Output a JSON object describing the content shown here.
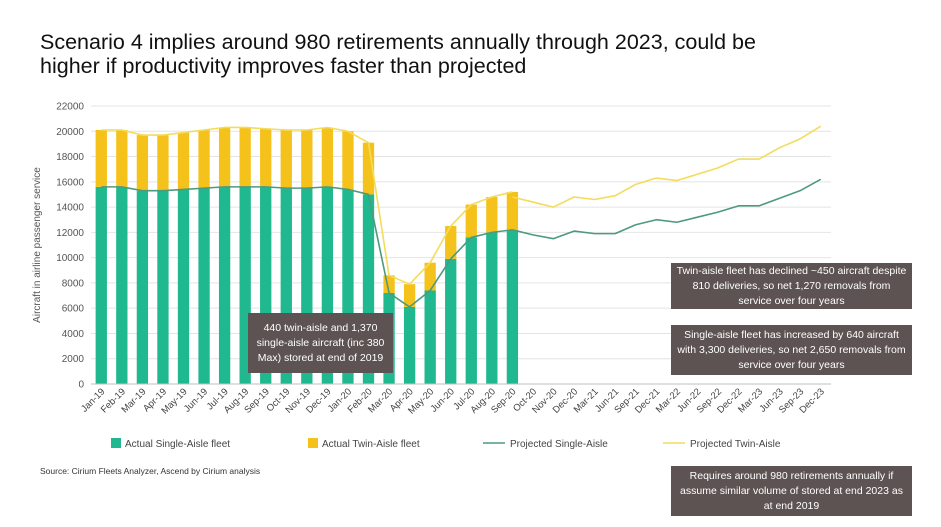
{
  "title_lines": [
    "Scenario 4 implies around 980 retirements annually through 2023, could be",
    "higher if productivity improves faster than projected"
  ],
  "source": "Source: Cirium Fleets Analyzer, Ascend by Cirium analysis",
  "notes": {
    "stored": "440 twin-aisle and 1,370 single-aisle aircraft (inc 380 Max) stored at end of 2019",
    "twin_aisle": "Twin-aisle fleet has declined ~450 aircraft despite 810 deliveries, so net 1,270 removals from service over four years",
    "single_aisle": "Single-aisle fleet has increased by 640 aircraft with 3,300 deliveries, so net 2,650 removals from service over four years",
    "retirements": "Requires around 980 retirements annually if assume similar volume of stored at end 2023 as at end 2019"
  },
  "colors": {
    "single_aisle": "#1fb88f",
    "twin_aisle": "#f5c21b",
    "projected_single": "#4e9a7d",
    "projected_twin": "#f3dc5c"
  },
  "chart_data": {
    "type": "bar",
    "ylabel": "Aircraft in airline passenger service",
    "ylim": [
      0,
      22000
    ],
    "yticks": [
      0,
      2000,
      4000,
      6000,
      8000,
      10000,
      12000,
      14000,
      16000,
      18000,
      20000,
      22000
    ],
    "actual_categories": [
      "Jan-19",
      "Feb-19",
      "Mar-19",
      "Apr-19",
      "May-19",
      "Jun-19",
      "Jul-19",
      "Aug-19",
      "Sep-19",
      "Oct-19",
      "Nov-19",
      "Dec-19",
      "Jan-20",
      "Feb-20",
      "Mar-20",
      "Apr-20",
      "May-20",
      "Jun-20",
      "Jul-20",
      "Aug-20",
      "Sep-20"
    ],
    "x_tick_labels": [
      "Jan-19",
      "Feb-19",
      "Mar-19",
      "Apr-19",
      "May-19",
      "Jun-19",
      "Jul-19",
      "Aug-19",
      "Sep-19",
      "Oct-19",
      "Nov-19",
      "Dec-19",
      "Jan-20",
      "Feb-20",
      "Mar-20",
      "Apr-20",
      "May-20",
      "Jun-20",
      "Jul-20",
      "Aug-20",
      "Sep-20",
      "Oct-20",
      "Nov-20",
      "Dec-20",
      "Mar-21",
      "Jun-21",
      "Sep-21",
      "Dec-21",
      "Mar-22",
      "Jun-22",
      "Sep-22",
      "Dec-22",
      "Mar-23",
      "Jun-23",
      "Sep-23",
      "Dec-23"
    ],
    "series": [
      {
        "name": "Actual Single-Aisle fleet",
        "kind": "bar",
        "values": [
          15600,
          15600,
          15300,
          15300,
          15400,
          15500,
          15600,
          15600,
          15600,
          15500,
          15500,
          15600,
          15400,
          15000,
          7200,
          6100,
          7400,
          9900,
          11600,
          12000,
          12200
        ]
      },
      {
        "name": "Actual Twin-Aisle fleet",
        "kind": "bar",
        "values": [
          4500,
          4500,
          4400,
          4400,
          4500,
          4600,
          4700,
          4700,
          4600,
          4600,
          4600,
          4700,
          4600,
          4100,
          1400,
          1800,
          2200,
          2600,
          2600,
          2800,
          3000
        ]
      },
      {
        "name": "Projected Single-Aisle",
        "kind": "line",
        "x": [
          "Sep-20",
          "Oct-20",
          "Nov-20",
          "Dec-20",
          "Mar-21",
          "Jun-21",
          "Sep-21",
          "Dec-21",
          "Mar-22",
          "Jun-22",
          "Sep-22",
          "Dec-22",
          "Mar-23",
          "Jun-23",
          "Sep-23",
          "Dec-23"
        ],
        "values": [
          12200,
          11800,
          11500,
          12100,
          11900,
          11900,
          12600,
          13000,
          12800,
          13200,
          13600,
          14100,
          14100,
          14700,
          15300,
          16200
        ]
      },
      {
        "name": "Projected Twin-Aisle",
        "kind": "line",
        "x": [
          "Sep-20",
          "Oct-20",
          "Nov-20",
          "Dec-20",
          "Mar-21",
          "Jun-21",
          "Sep-21",
          "Dec-21",
          "Mar-22",
          "Jun-22",
          "Sep-22",
          "Dec-22",
          "Mar-23",
          "Jun-23",
          "Sep-23",
          "Dec-23"
        ],
        "values": [
          14800,
          14400,
          14000,
          14800,
          14600,
          14900,
          15800,
          16300,
          16100,
          16600,
          17100,
          17800,
          17800,
          18700,
          19400,
          20400
        ]
      }
    ]
  }
}
